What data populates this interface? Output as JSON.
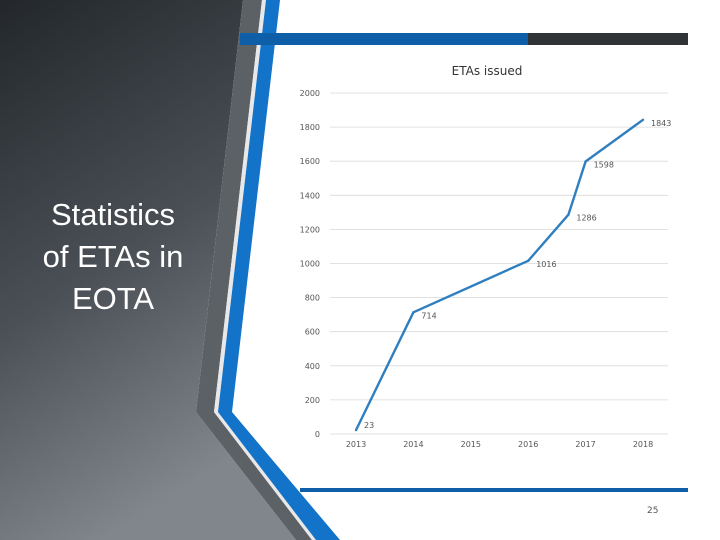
{
  "slide": {
    "title_lines": [
      "Statistics",
      "of ETAs in",
      "EOTA"
    ],
    "page_number": "25"
  },
  "colors": {
    "dark_panel": "#2b2f33",
    "accent_blue": "#0e5ea8",
    "line": "#2f7fc0",
    "grid": "#d9d9d9"
  },
  "chart_data": {
    "type": "line",
    "title": "ETAs issued",
    "xlabel": "",
    "ylabel": "",
    "categories": [
      "2013",
      "2014",
      "2015",
      "2016",
      "2017",
      "2018"
    ],
    "series": [
      {
        "x": [
          2013,
          2014,
          2016,
          2017,
          2018
        ],
        "values": [
          23,
          714,
          1016,
          1598,
          1843
        ],
        "labels": [
          "23",
          "714",
          "1016",
          "1598",
          "1843"
        ],
        "extra_points": [
          {
            "x": 2016.7,
            "y": 1286,
            "label": "1286"
          }
        ]
      }
    ],
    "ylim": [
      0,
      2000
    ],
    "yticks": [
      "0",
      "200",
      "400",
      "600",
      "800",
      "1000",
      "1200",
      "1400",
      "1600",
      "1800",
      "2000"
    ],
    "grid": true
  }
}
